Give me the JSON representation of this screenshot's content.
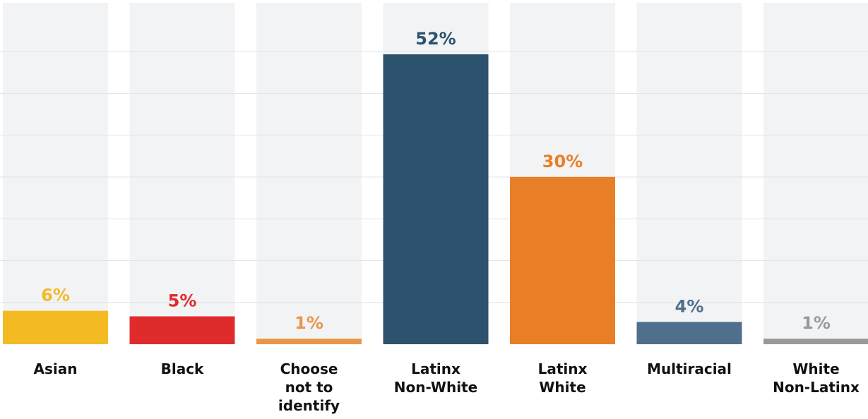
{
  "chart_data": {
    "type": "bar",
    "categories": [
      [
        "Asian"
      ],
      [
        "Black"
      ],
      [
        "Choose",
        "not to",
        "identify"
      ],
      [
        "Latinx",
        "Non-White"
      ],
      [
        "Latinx",
        "White"
      ],
      [
        "Multiracial"
      ],
      [
        "White",
        "Non-Latinx"
      ]
    ],
    "values": [
      6,
      5,
      1,
      52,
      30,
      4,
      1
    ],
    "value_labels": [
      "6%",
      "5%",
      "1%",
      "52%",
      "30%",
      "4%",
      "1%"
    ],
    "colors": [
      "#f4ba24",
      "#e02b2c",
      "#e8964a",
      "#2c526e",
      "#e87f26",
      "#4f6f8c",
      "#999999"
    ],
    "label_colors": [
      "#f4ba24",
      "#e02b2c",
      "#e8964a",
      "#2c526e",
      "#e87f26",
      "#4f6f8c",
      "#999999"
    ],
    "ylim": [
      0,
      60
    ],
    "grid": true,
    "title": "",
    "xlabel": "",
    "ylabel": ""
  }
}
